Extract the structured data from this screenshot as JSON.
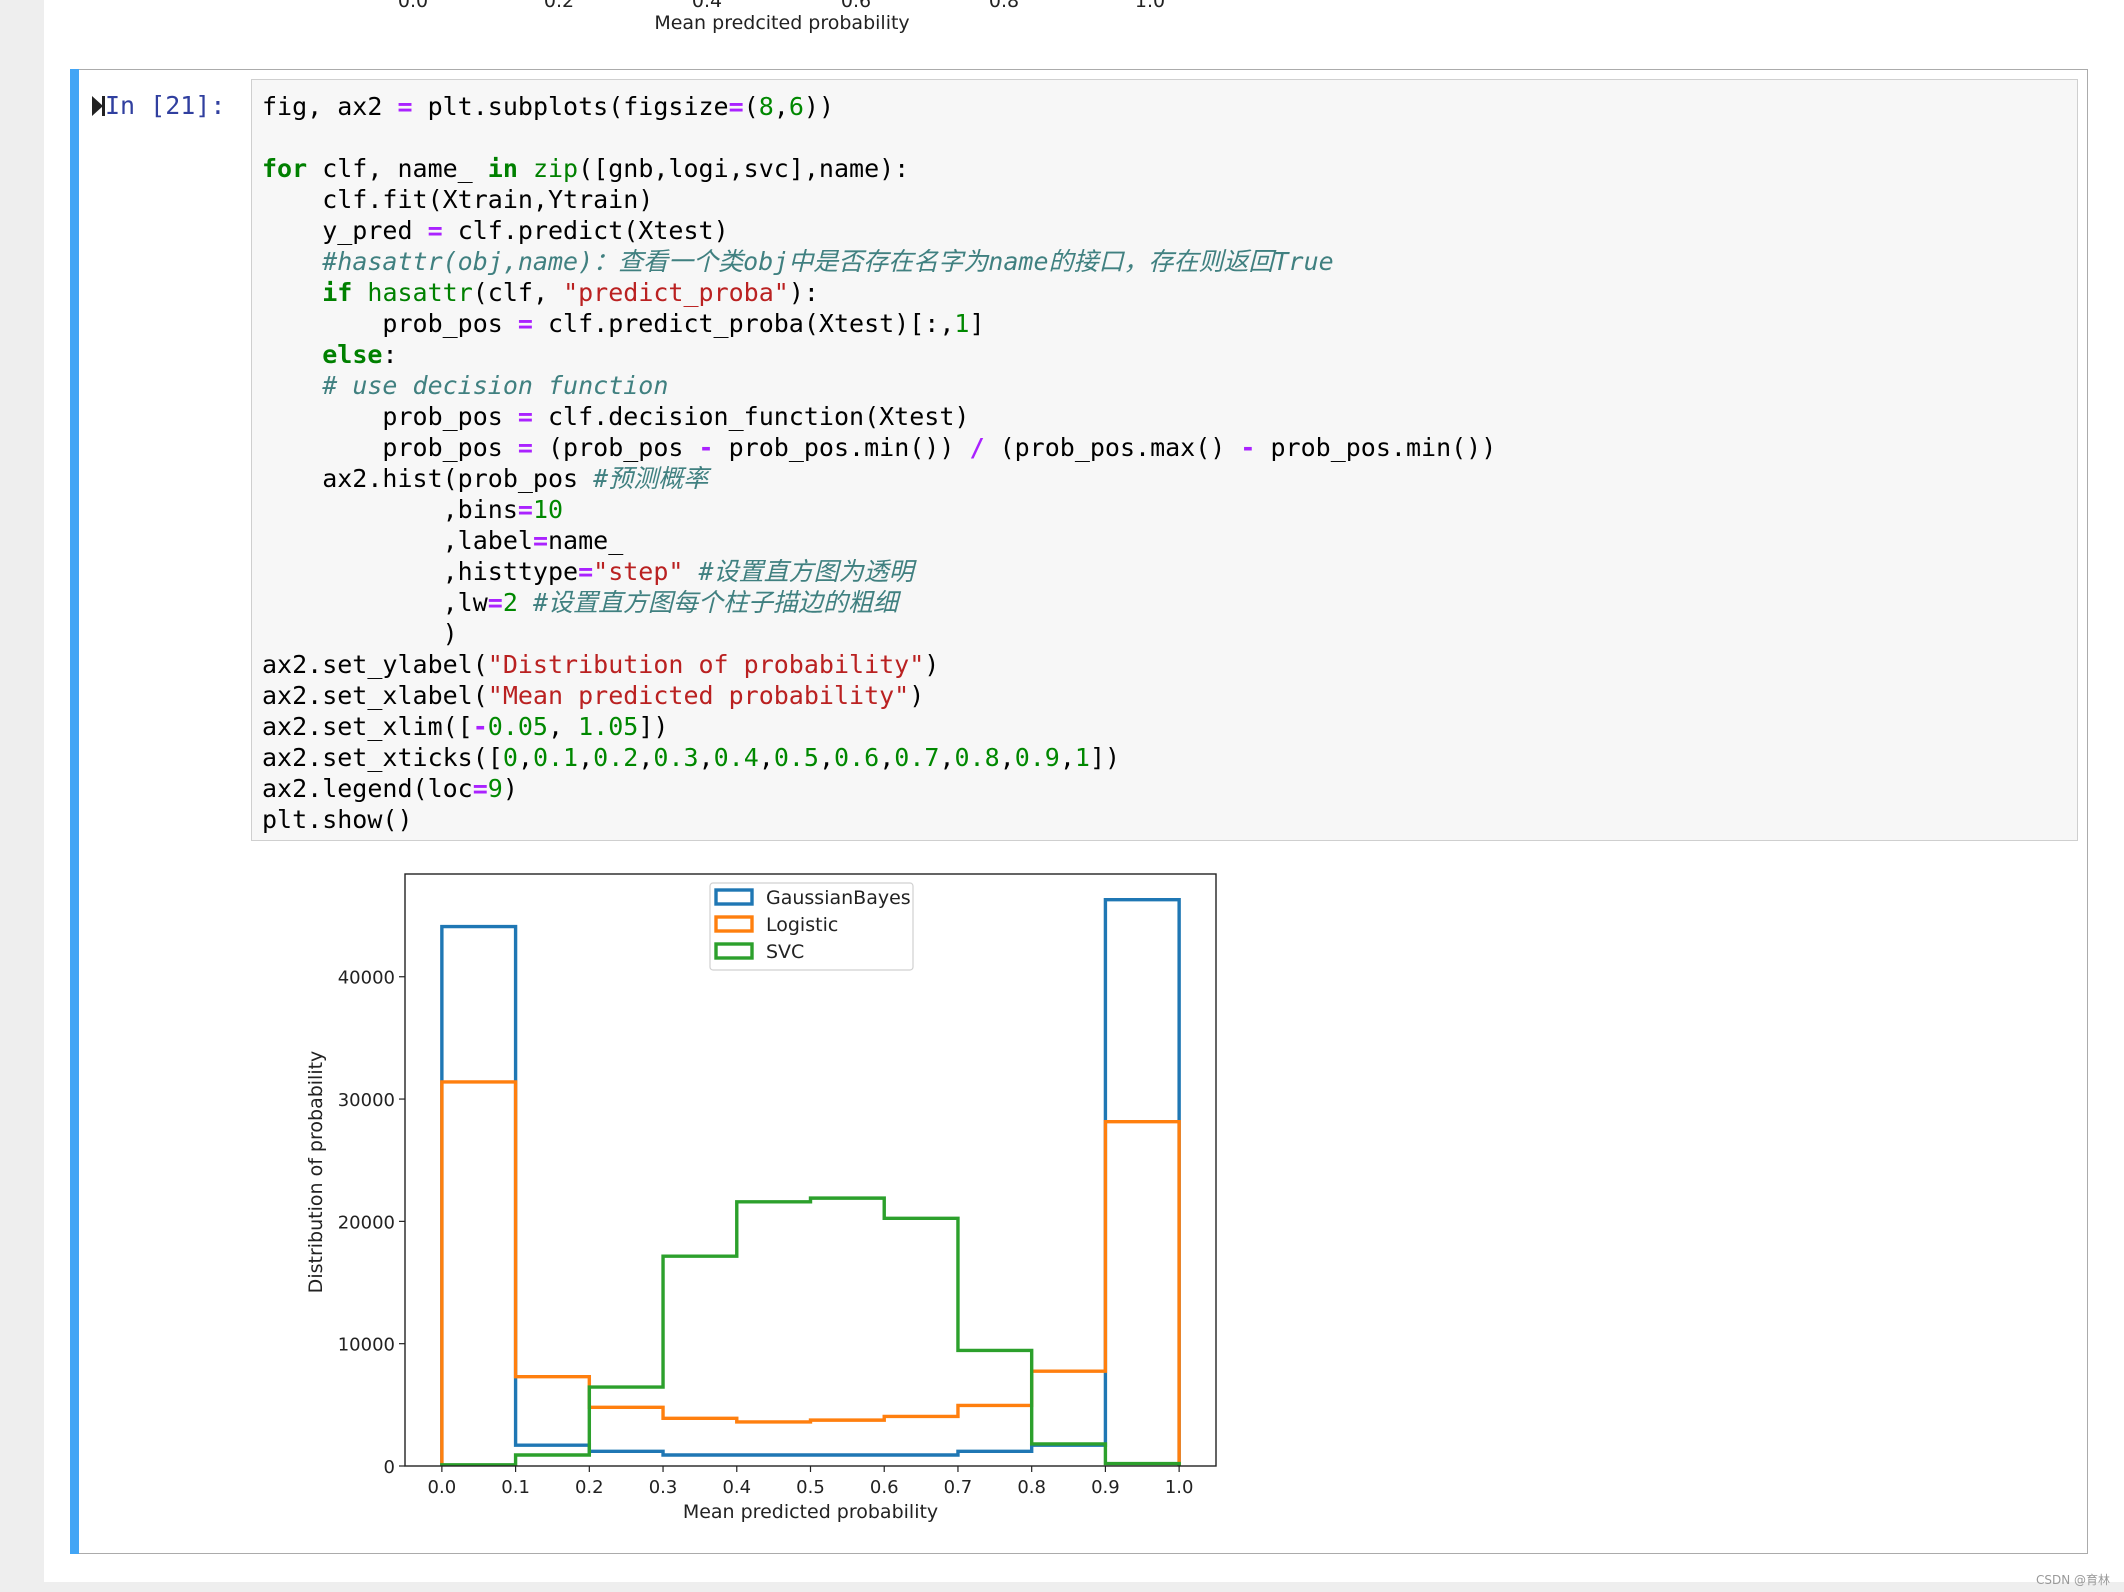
{
  "previous_output": {
    "x_tick_labels": [
      "0.0",
      "0.2",
      "0.4",
      "0.6",
      "0.8",
      "1.0"
    ],
    "xlabel": "Mean predcited probability"
  },
  "cell": {
    "prompt": "In [21]:",
    "run_icon": "step-run-icon",
    "code_lines": [
      [
        {
          "t": "",
          "v": "fig, ax2 "
        },
        {
          "t": "op",
          "v": "="
        },
        {
          "t": "",
          "v": " plt.subplots(figsize"
        },
        {
          "t": "op",
          "v": "="
        },
        {
          "t": "",
          "v": "("
        },
        {
          "t": "num",
          "v": "8"
        },
        {
          "t": "",
          "v": ","
        },
        {
          "t": "num",
          "v": "6"
        },
        {
          "t": "",
          "v": "))"
        }
      ],
      [],
      [
        {
          "t": "kw",
          "v": "for"
        },
        {
          "t": "",
          "v": " clf, name_ "
        },
        {
          "t": "kw",
          "v": "in"
        },
        {
          "t": "",
          "v": " "
        },
        {
          "t": "bi",
          "v": "zip"
        },
        {
          "t": "",
          "v": "([gnb,logi,svc],name):"
        }
      ],
      [
        {
          "t": "",
          "v": "    clf.fit(Xtrain,Ytrain)"
        }
      ],
      [
        {
          "t": "",
          "v": "    y_pred "
        },
        {
          "t": "op",
          "v": "="
        },
        {
          "t": "",
          "v": " clf.predict(Xtest)"
        }
      ],
      [
        {
          "t": "",
          "v": "    "
        },
        {
          "t": "cm",
          "v": "#hasattr(obj,name)：查看一个类obj中是否存在名字为name的接口，存在则返回True"
        }
      ],
      [
        {
          "t": "",
          "v": "    "
        },
        {
          "t": "kw",
          "v": "if"
        },
        {
          "t": "",
          "v": " "
        },
        {
          "t": "bi",
          "v": "hasattr"
        },
        {
          "t": "",
          "v": "(clf, "
        },
        {
          "t": "str",
          "v": "\"predict_proba\""
        },
        {
          "t": "",
          "v": "):"
        }
      ],
      [
        {
          "t": "",
          "v": "        prob_pos "
        },
        {
          "t": "op",
          "v": "="
        },
        {
          "t": "",
          "v": " clf.predict_proba(Xtest)[:,"
        },
        {
          "t": "num",
          "v": "1"
        },
        {
          "t": "",
          "v": "]"
        }
      ],
      [
        {
          "t": "",
          "v": "    "
        },
        {
          "t": "kw",
          "v": "else"
        },
        {
          "t": "",
          "v": ":"
        }
      ],
      [
        {
          "t": "",
          "v": "    "
        },
        {
          "t": "cm",
          "v": "# use decision function"
        }
      ],
      [
        {
          "t": "",
          "v": "        prob_pos "
        },
        {
          "t": "op",
          "v": "="
        },
        {
          "t": "",
          "v": " clf.decision_function(Xtest)"
        }
      ],
      [
        {
          "t": "",
          "v": "        prob_pos "
        },
        {
          "t": "op",
          "v": "="
        },
        {
          "t": "",
          "v": " (prob_pos "
        },
        {
          "t": "op",
          "v": "-"
        },
        {
          "t": "",
          "v": " prob_pos.min()) "
        },
        {
          "t": "op",
          "v": "/"
        },
        {
          "t": "",
          "v": " (prob_pos.max() "
        },
        {
          "t": "op",
          "v": "-"
        },
        {
          "t": "",
          "v": " prob_pos.min())"
        }
      ],
      [
        {
          "t": "",
          "v": "    ax2.hist(prob_pos "
        },
        {
          "t": "cm",
          "v": "#预测概率"
        }
      ],
      [
        {
          "t": "",
          "v": "            ,bins"
        },
        {
          "t": "op",
          "v": "="
        },
        {
          "t": "num",
          "v": "10"
        }
      ],
      [
        {
          "t": "",
          "v": "            ,label"
        },
        {
          "t": "op",
          "v": "="
        },
        {
          "t": "",
          "v": "name_"
        }
      ],
      [
        {
          "t": "",
          "v": "            ,histtype"
        },
        {
          "t": "op",
          "v": "="
        },
        {
          "t": "str",
          "v": "\"step\""
        },
        {
          "t": "",
          "v": " "
        },
        {
          "t": "cm",
          "v": "#设置直方图为透明"
        }
      ],
      [
        {
          "t": "",
          "v": "            ,lw"
        },
        {
          "t": "op",
          "v": "="
        },
        {
          "t": "num",
          "v": "2"
        },
        {
          "t": "",
          "v": " "
        },
        {
          "t": "cm",
          "v": "#设置直方图每个柱子描边的粗细"
        }
      ],
      [
        {
          "t": "",
          "v": "            )"
        }
      ],
      [
        {
          "t": "",
          "v": "ax2.set_ylabel("
        },
        {
          "t": "str",
          "v": "\"Distribution of probability\""
        },
        {
          "t": "",
          "v": ")"
        }
      ],
      [
        {
          "t": "",
          "v": "ax2.set_xlabel("
        },
        {
          "t": "str",
          "v": "\"Mean predicted probability\""
        },
        {
          "t": "",
          "v": ")"
        }
      ],
      [
        {
          "t": "",
          "v": "ax2.set_xlim(["
        },
        {
          "t": "op",
          "v": "-"
        },
        {
          "t": "num",
          "v": "0.05"
        },
        {
          "t": "",
          "v": ", "
        },
        {
          "t": "num",
          "v": "1.05"
        },
        {
          "t": "",
          "v": "])"
        }
      ],
      [
        {
          "t": "",
          "v": "ax2.set_xticks(["
        },
        {
          "t": "num",
          "v": "0"
        },
        {
          "t": "",
          "v": ","
        },
        {
          "t": "num",
          "v": "0.1"
        },
        {
          "t": "",
          "v": ","
        },
        {
          "t": "num",
          "v": "0.2"
        },
        {
          "t": "",
          "v": ","
        },
        {
          "t": "num",
          "v": "0.3"
        },
        {
          "t": "",
          "v": ","
        },
        {
          "t": "num",
          "v": "0.4"
        },
        {
          "t": "",
          "v": ","
        },
        {
          "t": "num",
          "v": "0.5"
        },
        {
          "t": "",
          "v": ","
        },
        {
          "t": "num",
          "v": "0.6"
        },
        {
          "t": "",
          "v": ","
        },
        {
          "t": "num",
          "v": "0.7"
        },
        {
          "t": "",
          "v": ","
        },
        {
          "t": "num",
          "v": "0.8"
        },
        {
          "t": "",
          "v": ","
        },
        {
          "t": "num",
          "v": "0.9"
        },
        {
          "t": "",
          "v": ","
        },
        {
          "t": "num",
          "v": "1"
        },
        {
          "t": "",
          "v": "])"
        }
      ],
      [
        {
          "t": "",
          "v": "ax2.legend(loc"
        },
        {
          "t": "op",
          "v": "="
        },
        {
          "t": "num",
          "v": "9"
        },
        {
          "t": "",
          "v": ")"
        }
      ],
      [
        {
          "t": "",
          "v": "plt.show()"
        }
      ]
    ]
  },
  "chart_data": {
    "type": "histogram-step",
    "title": "",
    "xlabel": "Mean predicted probability",
    "ylabel": "Distribution of probability",
    "xlim": [
      -0.05,
      1.05
    ],
    "ylim": [
      0,
      48400
    ],
    "x_ticks": [
      0,
      0.1,
      0.2,
      0.3,
      0.4,
      0.5,
      0.6,
      0.7,
      0.8,
      0.9,
      1.0
    ],
    "x_tick_labels": [
      "0.0",
      "0.1",
      "0.2",
      "0.3",
      "0.4",
      "0.5",
      "0.6",
      "0.7",
      "0.8",
      "0.9",
      "1.0"
    ],
    "y_ticks": [
      0,
      10000,
      20000,
      30000,
      40000
    ],
    "y_tick_labels": [
      "0",
      "10000",
      "20000",
      "30000",
      "40000"
    ],
    "bin_edges": [
      0,
      0.1,
      0.2,
      0.3,
      0.4,
      0.5,
      0.6,
      0.7,
      0.8,
      0.9,
      1.0
    ],
    "legend_position": "upper-center",
    "grid": false,
    "series": [
      {
        "name": "GaussianBayes",
        "color": "#1f77b4",
        "values": [
          44100,
          1700,
          1200,
          900,
          900,
          900,
          900,
          1200,
          1700,
          46300
        ]
      },
      {
        "name": "Logistic",
        "color": "#ff7f0e",
        "values": [
          31400,
          7300,
          4800,
          3900,
          3600,
          3750,
          4050,
          4950,
          7750,
          28150
        ]
      },
      {
        "name": "SVC",
        "color": "#2ca02c",
        "values": [
          100,
          900,
          6450,
          17150,
          21600,
          21900,
          20250,
          9450,
          1800,
          200
        ]
      }
    ]
  },
  "watermark": "CSDN @育林"
}
